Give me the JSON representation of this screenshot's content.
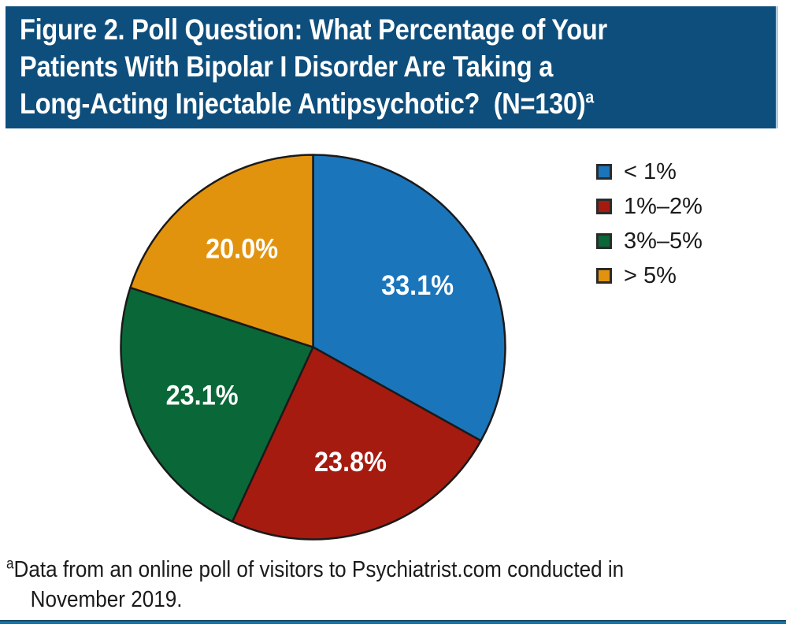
{
  "figure": {
    "title": {
      "lines": [
        "Figure 2. Poll Question: What Percentage of Your",
        "Patients With Bipolar I Disorder Are Taking a",
        "Long-Acting Injectable Antipsychotic?  (N=130)"
      ],
      "superscript": "a"
    },
    "footnote": {
      "marker": "a",
      "line1": "Data from an online poll of visitors to Psychiatrist.com conducted in",
      "line2": "November 2019."
    }
  },
  "chart_data": {
    "type": "pie",
    "title": "Poll Question: What Percentage of Your Patients With Bipolar I Disorder Are Taking a Long-Acting Injectable Antipsychotic? (N=130)",
    "direction": "clockwise",
    "start_angle_deg": 0,
    "legend_position": "right",
    "slice_label_color": "#FFFFFF",
    "slice_stroke_color": "#1A1A1A",
    "slices": [
      {
        "label": "< 1%",
        "value": 33.1,
        "display": "33.1%",
        "color": "#1B75BB"
      },
      {
        "label": "1%–2%",
        "value": 23.8,
        "display": "23.8%",
        "color": "#A61B10"
      },
      {
        "label": "3%–5%",
        "value": 23.1,
        "display": "23.1%",
        "color": "#0A6838"
      },
      {
        "label": "> 5%",
        "value": 20.0,
        "display": "20.0%",
        "color": "#E2930E"
      }
    ]
  },
  "colors": {
    "title_bar_background": "#0E4E7C",
    "title_text": "#FFFFFF",
    "title_bar_right_edge": "#AECBDE",
    "bottom_rule_blue": "#1878A9",
    "bottom_rule_dark_edge": "#0B3C5E",
    "body_text": "#1A1A1A"
  }
}
